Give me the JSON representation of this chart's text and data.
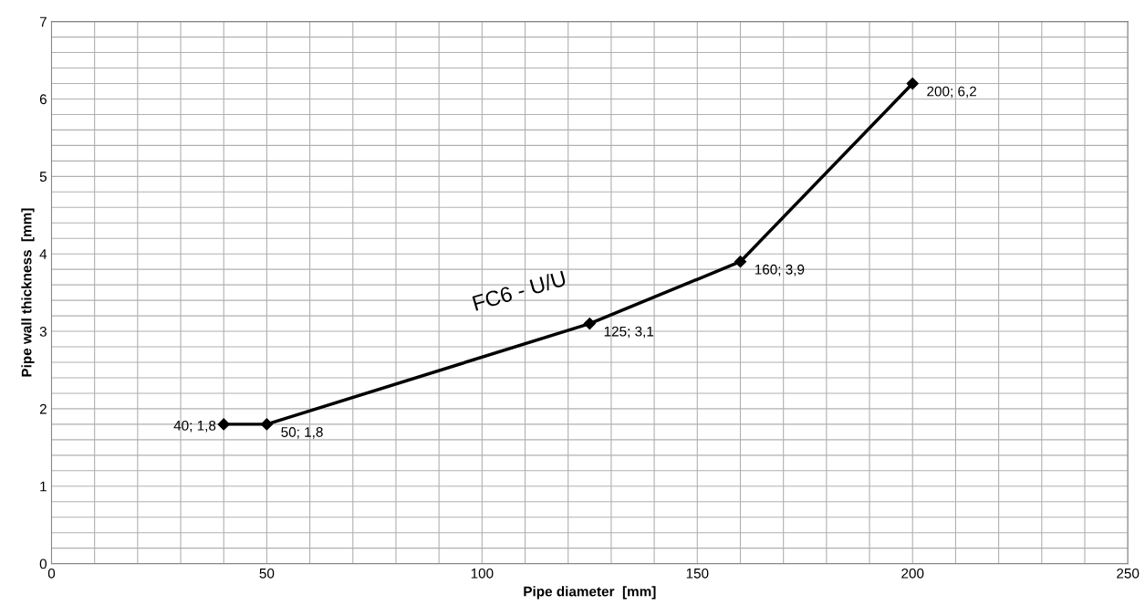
{
  "chart_data": {
    "type": "line",
    "xlabel": "Pipe diameter  [mm]",
    "ylabel": "Pipe wall thickness  [mm]",
    "x": [
      40,
      50,
      125,
      160,
      200
    ],
    "series": [
      {
        "color": "#000000",
        "values": [
          1.8,
          1.8,
          3.1,
          3.9,
          6.2
        ],
        "value_labels": [
          "40; 1,8",
          "50; 1,8",
          "125; 3,1",
          "160; 3,9",
          "200; 6,2"
        ]
      }
    ],
    "annotations": [
      "FC6 - U/U"
    ],
    "xlim": [
      0,
      250
    ],
    "ylim": [
      0,
      7
    ],
    "xticks": [
      0,
      {
        "value": 10,
        "label": null
      },
      {
        "value": 20,
        "label": null
      },
      {
        "value": 30,
        "label": null
      },
      {
        "value": 40,
        "label": null
      },
      50,
      {
        "value": 60,
        "label": null
      },
      {
        "value": 70,
        "label": null
      },
      {
        "value": 80,
        "label": null
      },
      {
        "value": 90,
        "label": null
      },
      100,
      {
        "value": 110,
        "label": null
      },
      {
        "value": 120,
        "label": null
      },
      {
        "value": 130,
        "label": null
      },
      {
        "value": 140,
        "label": null
      },
      150,
      {
        "value": 160,
        "label": null
      },
      {
        "value": 170,
        "label": null
      },
      {
        "value": 180,
        "label": null
      },
      {
        "value": 190,
        "label": null
      },
      200,
      {
        "value": 210,
        "label": null
      },
      {
        "value": 220,
        "label": null
      },
      {
        "value": 230,
        "label": null
      },
      {
        "value": 240,
        "label": null
      },
      250
    ],
    "yticks": [
      0,
      {
        "value": 0.2,
        "label": null
      },
      {
        "value": 0.4,
        "label": null
      },
      {
        "value": 0.6,
        "label": null
      },
      {
        "value": 0.8,
        "label": null
      },
      1,
      {
        "value": 1.2,
        "label": null
      },
      {
        "value": 1.4,
        "label": null
      },
      {
        "value": 1.6,
        "label": null
      },
      {
        "value": 1.8,
        "label": null
      },
      2,
      {
        "value": 2.2,
        "label": null
      },
      {
        "value": 2.4,
        "label": null
      },
      {
        "value": 2.6,
        "label": null
      },
      {
        "value": 2.8,
        "label": null
      },
      3,
      {
        "value": 3.2,
        "label": null
      },
      {
        "value": 3.4,
        "label": null
      },
      {
        "value": 3.6,
        "label": null
      },
      {
        "value": 3.8,
        "label": null
      },
      4,
      {
        "value": 4.2,
        "label": null
      },
      {
        "value": 4.4,
        "label": null
      },
      {
        "value": 4.6,
        "label": null
      },
      {
        "value": 4.8,
        "label": null
      },
      5,
      {
        "value": 5.2,
        "label": null
      },
      {
        "value": 5.4,
        "label": null
      },
      {
        "value": 5.6,
        "label": null
      },
      {
        "value": 5.8,
        "label": null
      },
      6,
      {
        "value": 6.2,
        "label": null
      },
      {
        "value": 6.4,
        "label": null
      },
      {
        "value": 6.6,
        "label": null
      },
      {
        "value": 6.8,
        "label": null
      },
      7
    ],
    "grid": true,
    "marker": "diamond",
    "line_style": "solid"
  }
}
